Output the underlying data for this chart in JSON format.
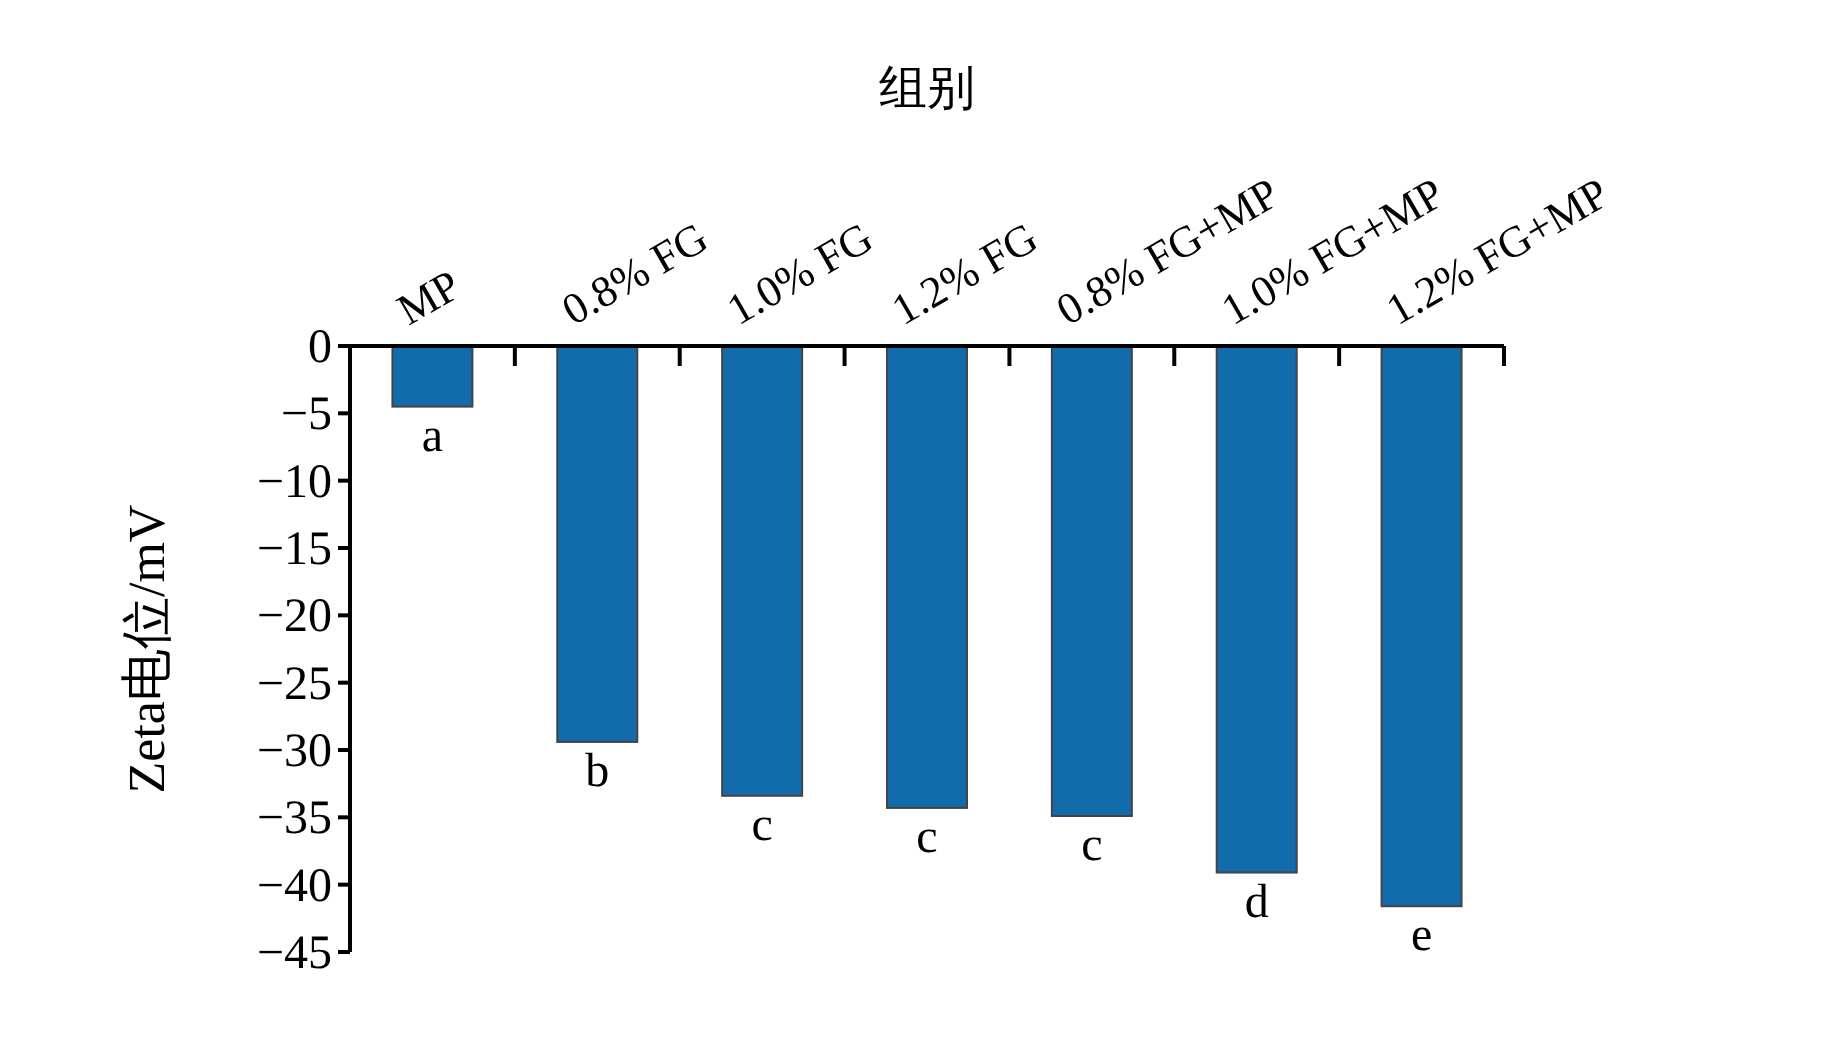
{
  "chart_data": {
    "type": "bar",
    "xlabel": "组别",
    "ylabel": "Zeta电位/mV",
    "categories": [
      "MP",
      "0.8% FG",
      "1.0% FG",
      "1.2% FG",
      "0.8% FG+MP",
      "1.0% FG+MP",
      "1.2% FG+MP"
    ],
    "values": [
      -4.5,
      -29.4,
      -33.4,
      -34.3,
      -34.9,
      -39.1,
      -41.6
    ],
    "color": "#126bab",
    "ylim": [
      -45,
      0
    ],
    "yticks": [
      0,
      {
        "value": -5,
        "label": "−5"
      },
      {
        "value": -10,
        "label": "−10"
      },
      {
        "value": -15,
        "label": "−15"
      },
      {
        "value": -20,
        "label": "−20"
      },
      {
        "value": -25,
        "label": "−25"
      },
      {
        "value": -30,
        "label": "−30"
      },
      {
        "value": -35,
        "label": "−35"
      },
      {
        "value": -40,
        "label": "−40"
      },
      {
        "value": -45,
        "label": "−45"
      }
    ],
    "value_labels": [
      "a",
      "b",
      "c",
      "c",
      "c",
      "d",
      "e"
    ]
  }
}
